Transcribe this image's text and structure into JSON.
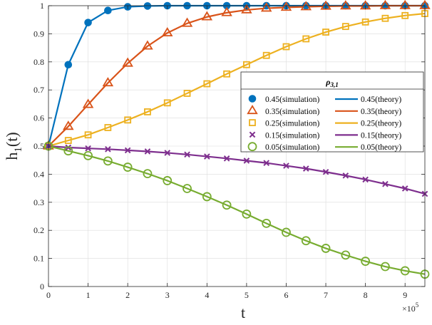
{
  "chart_data": {
    "type": "line",
    "xlabel": "t",
    "ylabel": "h",
    "ylabel_subscript": "1",
    "ylabel_suffix": "(t)",
    "x_multiplier_base": "×10",
    "x_multiplier_exp": "5",
    "xlim": [
      0,
      9.5
    ],
    "ylim": [
      0,
      1
    ],
    "x_ticks": [
      "0",
      "1",
      "2",
      "3",
      "4",
      "5",
      "6",
      "7",
      "8",
      "9"
    ],
    "y_ticks": [
      "0",
      "0.1",
      "0.2",
      "0.3",
      "0.4",
      "0.5",
      "0.6",
      "0.7",
      "0.8",
      "0.9",
      "1"
    ],
    "grid": true,
    "legend_title": "ρ",
    "legend_title_sub": "3,1",
    "legend_position": "right",
    "x": [
      0,
      0.5,
      1,
      1.5,
      2,
      2.5,
      3,
      3.5,
      4,
      4.5,
      5,
      5.5,
      6,
      6.5,
      7,
      7.5,
      8,
      8.5,
      9,
      9.5
    ],
    "series": [
      {
        "sim_label": "0.45(simulation)",
        "theory_label": "0.45(theory)",
        "color": "#0072BD",
        "marker": "circle-filled",
        "values": [
          0.5,
          0.79,
          0.94,
          0.983,
          0.996,
          0.999,
          1,
          1,
          1,
          1,
          1,
          1,
          1,
          1,
          1,
          1,
          1,
          1,
          1,
          1
        ]
      },
      {
        "sim_label": "0.35(simulation)",
        "theory_label": "0.35(theory)",
        "color": "#D95319",
        "marker": "triangle",
        "values": [
          0.5,
          0.57,
          0.648,
          0.725,
          0.795,
          0.856,
          0.903,
          0.937,
          0.96,
          0.975,
          0.985,
          0.991,
          0.994,
          0.996,
          0.998,
          0.999,
          0.999,
          1,
          1,
          1
        ]
      },
      {
        "sim_label": "0.25(simulation)",
        "theory_label": "0.25(theory)",
        "color": "#EDB120",
        "marker": "square",
        "values": [
          0.5,
          0.52,
          0.54,
          0.566,
          0.593,
          0.622,
          0.654,
          0.688,
          0.722,
          0.757,
          0.79,
          0.823,
          0.854,
          0.882,
          0.906,
          0.926,
          0.942,
          0.955,
          0.965,
          0.972
        ]
      },
      {
        "sim_label": "0.15(simulation)",
        "theory_label": "0.15(theory)",
        "color": "#7E2F8E",
        "marker": "x",
        "values": [
          0.5,
          0.495,
          0.492,
          0.489,
          0.485,
          0.481,
          0.476,
          0.47,
          0.463,
          0.456,
          0.448,
          0.44,
          0.43,
          0.42,
          0.408,
          0.395,
          0.381,
          0.365,
          0.349,
          0.33
        ]
      },
      {
        "sim_label": "0.05(simulation)",
        "theory_label": "0.05(theory)",
        "color": "#77AC30",
        "marker": "circle-open",
        "values": [
          0.5,
          0.483,
          0.466,
          0.447,
          0.425,
          0.402,
          0.377,
          0.349,
          0.32,
          0.29,
          0.258,
          0.225,
          0.193,
          0.163,
          0.136,
          0.112,
          0.09,
          0.071,
          0.056,
          0.044
        ]
      }
    ]
  }
}
